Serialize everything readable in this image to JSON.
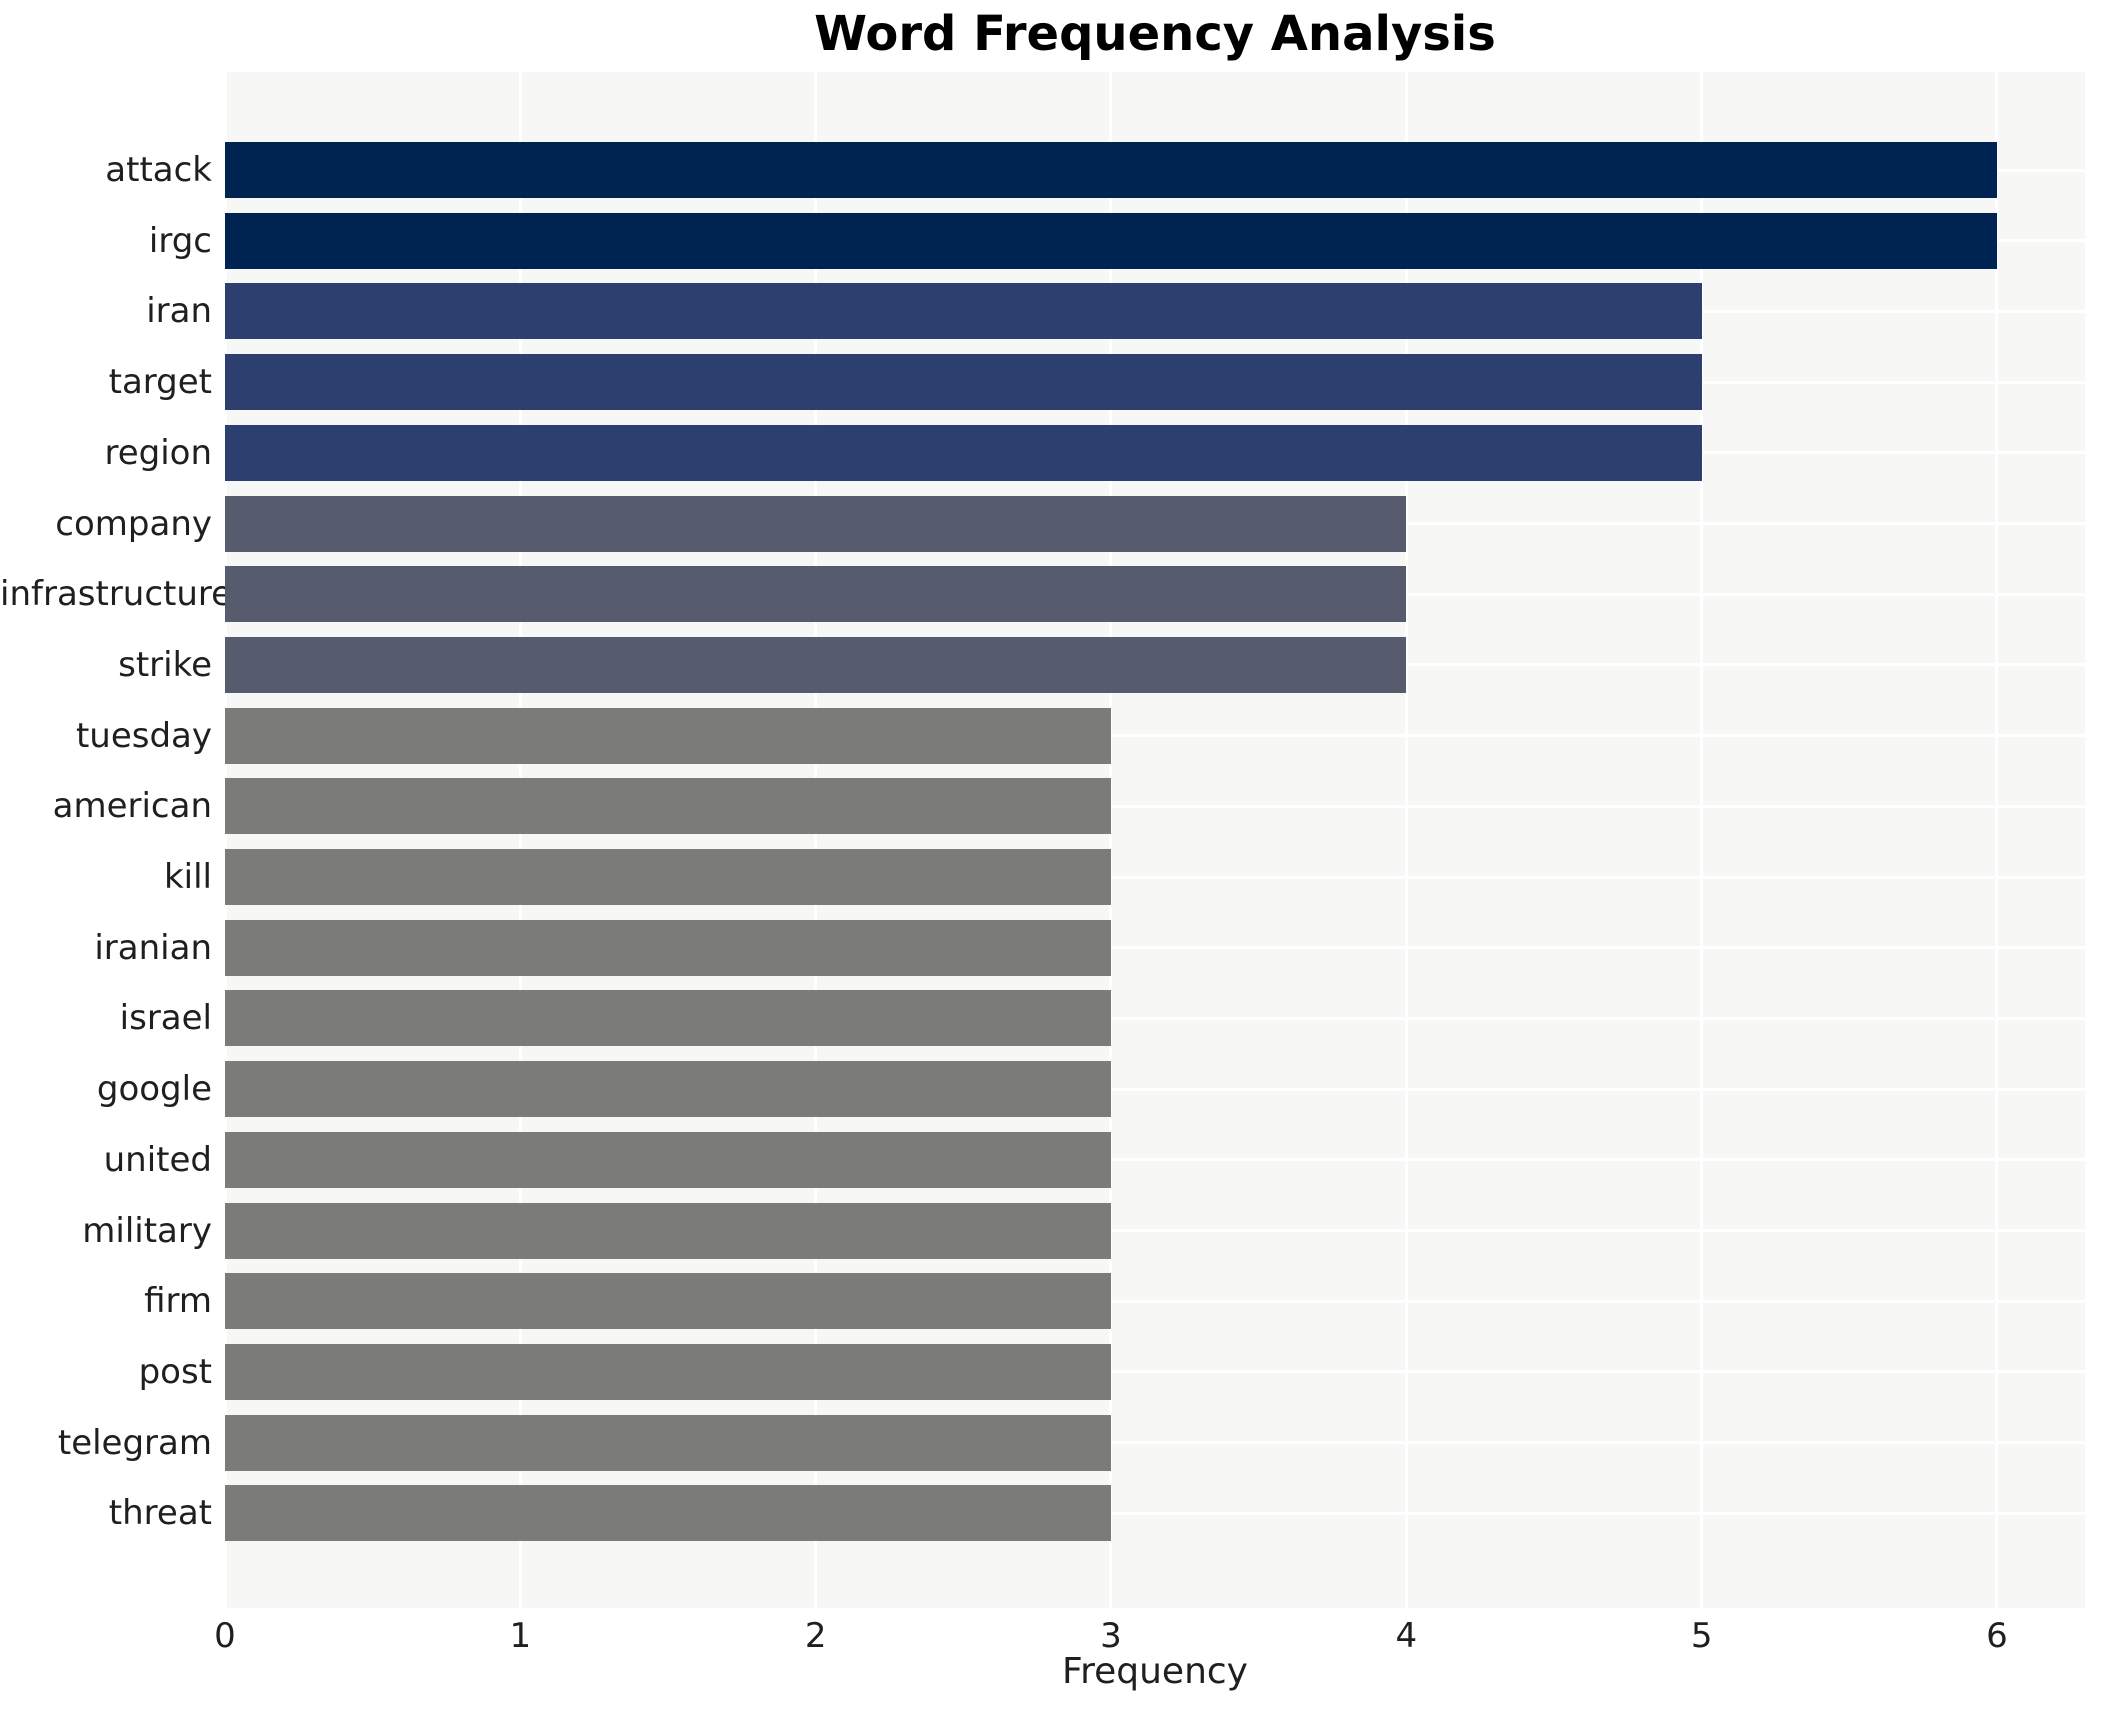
{
  "chart_data": {
    "type": "bar",
    "orientation": "horizontal",
    "title": "Word Frequency Analysis",
    "xlabel": "Frequency",
    "ylabel": "",
    "categories": [
      "attack",
      "irgc",
      "iran",
      "target",
      "region",
      "company",
      "infrastructure",
      "strike",
      "tuesday",
      "american",
      "kill",
      "iranian",
      "israel",
      "google",
      "united",
      "military",
      "firm",
      "post",
      "telegram",
      "threat"
    ],
    "values": [
      6,
      6,
      5,
      5,
      5,
      4,
      4,
      4,
      3,
      3,
      3,
      3,
      3,
      3,
      3,
      3,
      3,
      3,
      3,
      3
    ],
    "x_ticks": [
      0,
      1,
      2,
      3,
      4,
      5,
      6
    ],
    "xlim": [
      0,
      6.3
    ],
    "grid": true,
    "legend": false,
    "colors_by_value": {
      "6": "#002452",
      "5": "#2d3f6f",
      "4": "#565c6e",
      "3": "#7b7b78"
    },
    "plot_background": "#f7f7f6",
    "grid_color": "#ffffff",
    "text_color": "#1f1f1f"
  }
}
